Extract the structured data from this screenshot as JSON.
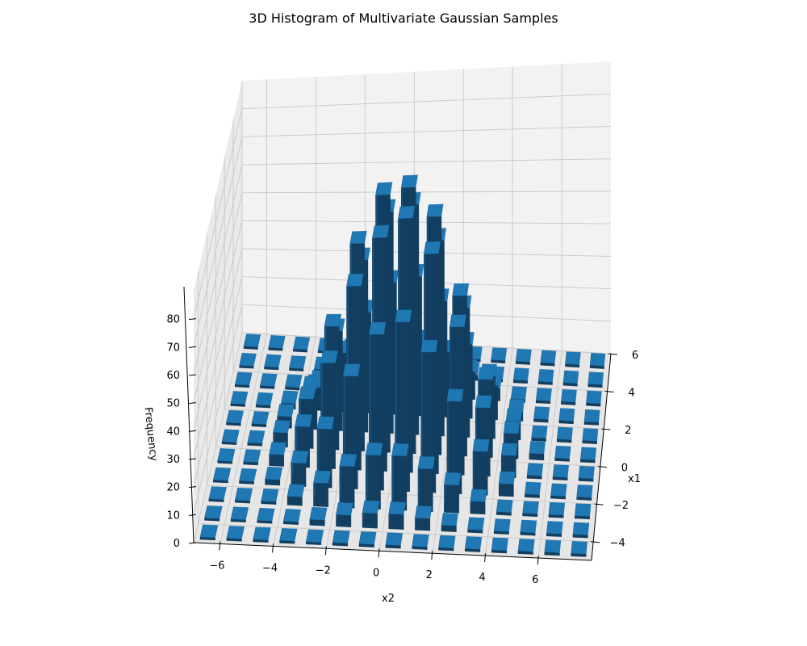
{
  "chart_data": {
    "type": "bar3d",
    "title": "3D Histogram of Multivariate Gaussian Samples",
    "xlabel": "x1",
    "ylabel": "x2",
    "zlabel": "Frequency",
    "x_ticks": [
      "−4",
      "−2",
      "0",
      "2",
      "4",
      "6"
    ],
    "y_ticks": [
      "−6",
      "−4",
      "−2",
      "0",
      "2",
      "4",
      "6"
    ],
    "z_ticks": [
      "0",
      "10",
      "20",
      "30",
      "40",
      "50",
      "60",
      "70",
      "80"
    ],
    "x_range": [
      -5,
      6
    ],
    "y_range": [
      -7,
      8
    ],
    "z_range": [
      0,
      90
    ],
    "x_bin_edges": [
      -5,
      -4,
      -3,
      -2,
      -1,
      0,
      1,
      2,
      3,
      4,
      5,
      6
    ],
    "y_bin_edges": [
      -7,
      -6,
      -5,
      -4,
      -3,
      -2,
      -1,
      0,
      1,
      2,
      3,
      4,
      5,
      6,
      7,
      8
    ],
    "counts": [
      [
        0,
        0,
        0,
        0,
        0,
        1,
        1,
        1,
        0,
        0,
        0,
        0,
        0,
        0,
        0
      ],
      [
        0,
        0,
        0,
        1,
        2,
        4,
        5,
        5,
        4,
        2,
        1,
        0,
        0,
        0,
        0
      ],
      [
        0,
        0,
        1,
        3,
        8,
        14,
        18,
        18,
        14,
        9,
        4,
        1,
        0,
        0,
        0
      ],
      [
        0,
        1,
        2,
        8,
        20,
        38,
        52,
        56,
        46,
        30,
        14,
        4,
        1,
        0,
        0
      ],
      [
        0,
        1,
        4,
        14,
        36,
        62,
        78,
        84,
        72,
        48,
        22,
        7,
        1,
        0,
        0
      ],
      [
        0,
        1,
        5,
        17,
        42,
        70,
        86,
        88,
        78,
        52,
        25,
        8,
        2,
        0,
        0
      ],
      [
        0,
        1,
        4,
        14,
        34,
        58,
        74,
        76,
        64,
        42,
        20,
        6,
        1,
        0,
        0
      ],
      [
        0,
        0,
        2,
        8,
        20,
        34,
        44,
        46,
        38,
        24,
        11,
        3,
        1,
        0,
        0
      ],
      [
        0,
        0,
        1,
        3,
        8,
        14,
        18,
        18,
        15,
        9,
        4,
        1,
        0,
        0,
        0
      ],
      [
        0,
        0,
        0,
        1,
        2,
        4,
        5,
        5,
        4,
        2,
        1,
        0,
        0,
        0,
        0
      ],
      [
        0,
        0,
        0,
        0,
        0,
        1,
        1,
        1,
        0,
        0,
        0,
        0,
        0,
        0,
        0
      ]
    ],
    "bar_color": "#1f77b4",
    "grid": true
  }
}
